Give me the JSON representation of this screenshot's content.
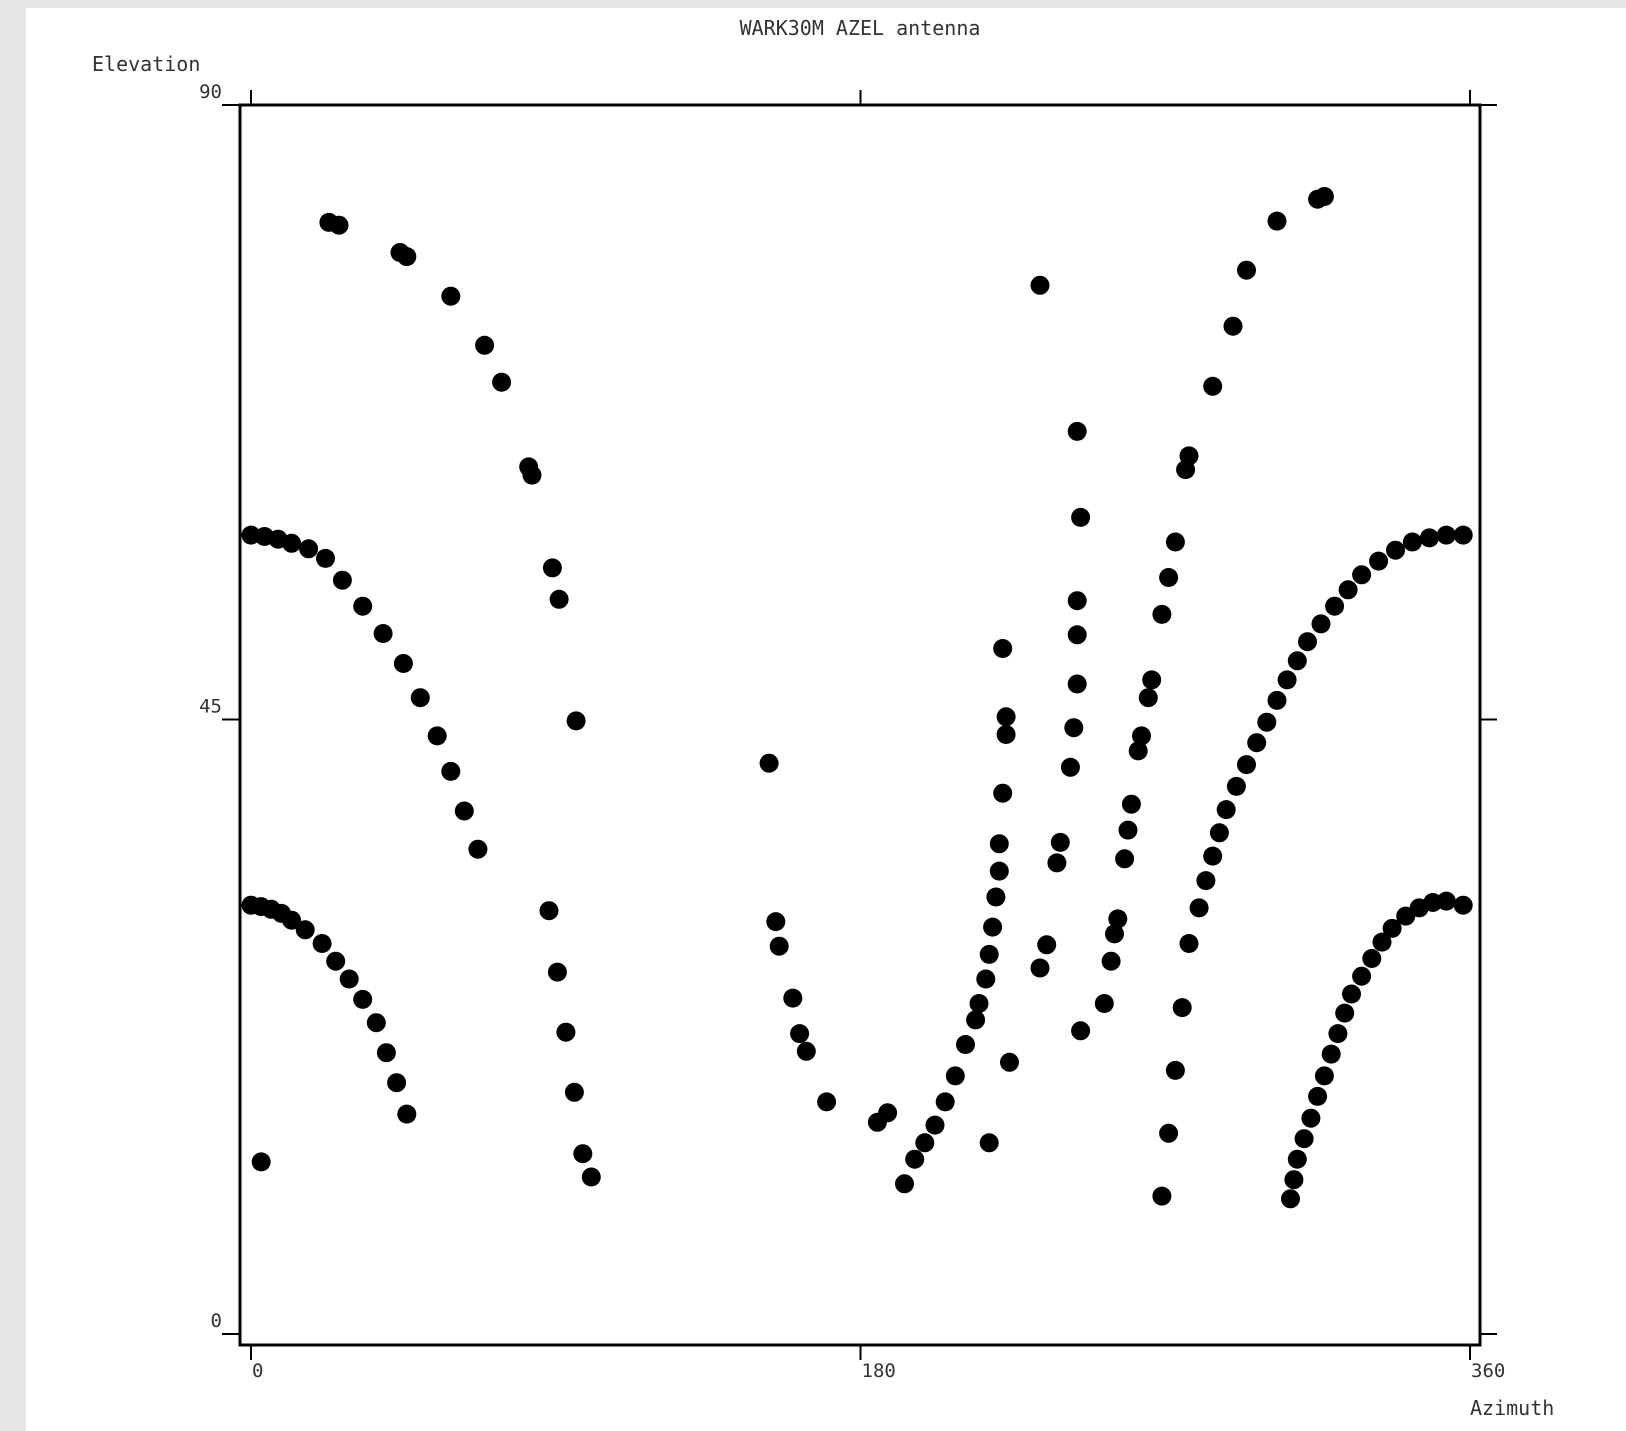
{
  "chart_data": {
    "type": "scatter",
    "title": "WARK30M AZEL antenna",
    "xlabel": "Azimuth",
    "ylabel": "Elevation",
    "xlim": [
      0,
      360
    ],
    "ylim": [
      0,
      90
    ],
    "xticks": [
      0,
      180,
      360
    ],
    "yticks": [
      0,
      45,
      90
    ],
    "grid": false,
    "legend": "none",
    "marker_color": "#000000",
    "points": [
      [
        0,
        58.5
      ],
      [
        4,
        58.4
      ],
      [
        8,
        58.2
      ],
      [
        12,
        57.9
      ],
      [
        17,
        57.5
      ],
      [
        22,
        56.8
      ],
      [
        27,
        55.2
      ],
      [
        33,
        53.3
      ],
      [
        39,
        51.3
      ],
      [
        45,
        49.1
      ],
      [
        50,
        46.6
      ],
      [
        55,
        43.8
      ],
      [
        59,
        41.2
      ],
      [
        63,
        38.3
      ],
      [
        67,
        35.5
      ],
      [
        0,
        31.4
      ],
      [
        3,
        31.3
      ],
      [
        6,
        31.1
      ],
      [
        9,
        30.8
      ],
      [
        12,
        30.3
      ],
      [
        16,
        29.6
      ],
      [
        21,
        28.6
      ],
      [
        25,
        27.3
      ],
      [
        29,
        26.0
      ],
      [
        33,
        24.5
      ],
      [
        37,
        22.8
      ],
      [
        40,
        20.6
      ],
      [
        43,
        18.4
      ],
      [
        46,
        16.1
      ],
      [
        3,
        12.6
      ],
      [
        23,
        81.4
      ],
      [
        26,
        81.2
      ],
      [
        44,
        79.2
      ],
      [
        46,
        78.9
      ],
      [
        59,
        76.0
      ],
      [
        69,
        72.4
      ],
      [
        74,
        69.7
      ],
      [
        82,
        63.5
      ],
      [
        83,
        62.9
      ],
      [
        89,
        56.1
      ],
      [
        91,
        53.8
      ],
      [
        96,
        44.9
      ],
      [
        88,
        31.0
      ],
      [
        90.5,
        26.5
      ],
      [
        93,
        22.1
      ],
      [
        95.5,
        17.7
      ],
      [
        98,
        13.2
      ],
      [
        100.5,
        11.5
      ],
      [
        153,
        41.8
      ],
      [
        155,
        30.2
      ],
      [
        156,
        28.4
      ],
      [
        160,
        24.6
      ],
      [
        162,
        22.0
      ],
      [
        164,
        20.7
      ],
      [
        170,
        17.0
      ],
      [
        185,
        15.5
      ],
      [
        188,
        16.2
      ],
      [
        193,
        11.0
      ],
      [
        196,
        12.8
      ],
      [
        199,
        14.0
      ],
      [
        202,
        15.3
      ],
      [
        205,
        17.0
      ],
      [
        208,
        18.9
      ],
      [
        211,
        21.2
      ],
      [
        214,
        23.0
      ],
      [
        215,
        24.2
      ],
      [
        217,
        26.0
      ],
      [
        218,
        27.8
      ],
      [
        219,
        29.8
      ],
      [
        220,
        32.0
      ],
      [
        221,
        33.9
      ],
      [
        221,
        35.9
      ],
      [
        222,
        39.6
      ],
      [
        223,
        43.9
      ],
      [
        223,
        45.2
      ],
      [
        222,
        50.2
      ],
      [
        233,
        76.8
      ],
      [
        218,
        14.0
      ],
      [
        224,
        19.9
      ],
      [
        233,
        26.8
      ],
      [
        235,
        28.5
      ],
      [
        238,
        34.5
      ],
      [
        239,
        36.0
      ],
      [
        242,
        41.5
      ],
      [
        243,
        44.4
      ],
      [
        244,
        47.6
      ],
      [
        244,
        51.2
      ],
      [
        244,
        53.7
      ],
      [
        245,
        59.8
      ],
      [
        244,
        66.1
      ],
      [
        245,
        22.2
      ],
      [
        252,
        24.2
      ],
      [
        254,
        27.3
      ],
      [
        255,
        29.3
      ],
      [
        256,
        30.4
      ],
      [
        258,
        34.8
      ],
      [
        259,
        36.9
      ],
      [
        260,
        38.8
      ],
      [
        262,
        42.7
      ],
      [
        263,
        43.8
      ],
      [
        265,
        46.6
      ],
      [
        266,
        47.9
      ],
      [
        269,
        52.7
      ],
      [
        271,
        55.4
      ],
      [
        273,
        58.0
      ],
      [
        276,
        63.3
      ],
      [
        277,
        64.3
      ],
      [
        284,
        69.4
      ],
      [
        290,
        73.8
      ],
      [
        294,
        77.9
      ],
      [
        303,
        81.5
      ],
      [
        315,
        83.1
      ],
      [
        317,
        83.3
      ],
      [
        269,
        10.1
      ],
      [
        271,
        14.7
      ],
      [
        273,
        19.3
      ],
      [
        275,
        23.9
      ],
      [
        277,
        28.6
      ],
      [
        280,
        31.2
      ],
      [
        282,
        33.2
      ],
      [
        284,
        35.0
      ],
      [
        286,
        36.7
      ],
      [
        288,
        38.4
      ],
      [
        291,
        40.1
      ],
      [
        294,
        41.7
      ],
      [
        297,
        43.3
      ],
      [
        300,
        44.8
      ],
      [
        303,
        46.4
      ],
      [
        306,
        47.9
      ],
      [
        309,
        49.3
      ],
      [
        312,
        50.7
      ],
      [
        316,
        52.0
      ],
      [
        320,
        53.3
      ],
      [
        324,
        54.5
      ],
      [
        328,
        55.6
      ],
      [
        333,
        56.6
      ],
      [
        338,
        57.4
      ],
      [
        343,
        58.0
      ],
      [
        348,
        58.3
      ],
      [
        353,
        58.5
      ],
      [
        358,
        58.5
      ],
      [
        307,
        9.9
      ],
      [
        308,
        11.3
      ],
      [
        309,
        12.8
      ],
      [
        311,
        14.3
      ],
      [
        313,
        15.8
      ],
      [
        315,
        17.4
      ],
      [
        317,
        18.9
      ],
      [
        319,
        20.5
      ],
      [
        321,
        22.0
      ],
      [
        323,
        23.5
      ],
      [
        325,
        24.9
      ],
      [
        328,
        26.2
      ],
      [
        331,
        27.5
      ],
      [
        334,
        28.7
      ],
      [
        337,
        29.7
      ],
      [
        341,
        30.6
      ],
      [
        345,
        31.2
      ],
      [
        349,
        31.6
      ],
      [
        353,
        31.7
      ],
      [
        358,
        31.4
      ]
    ]
  }
}
